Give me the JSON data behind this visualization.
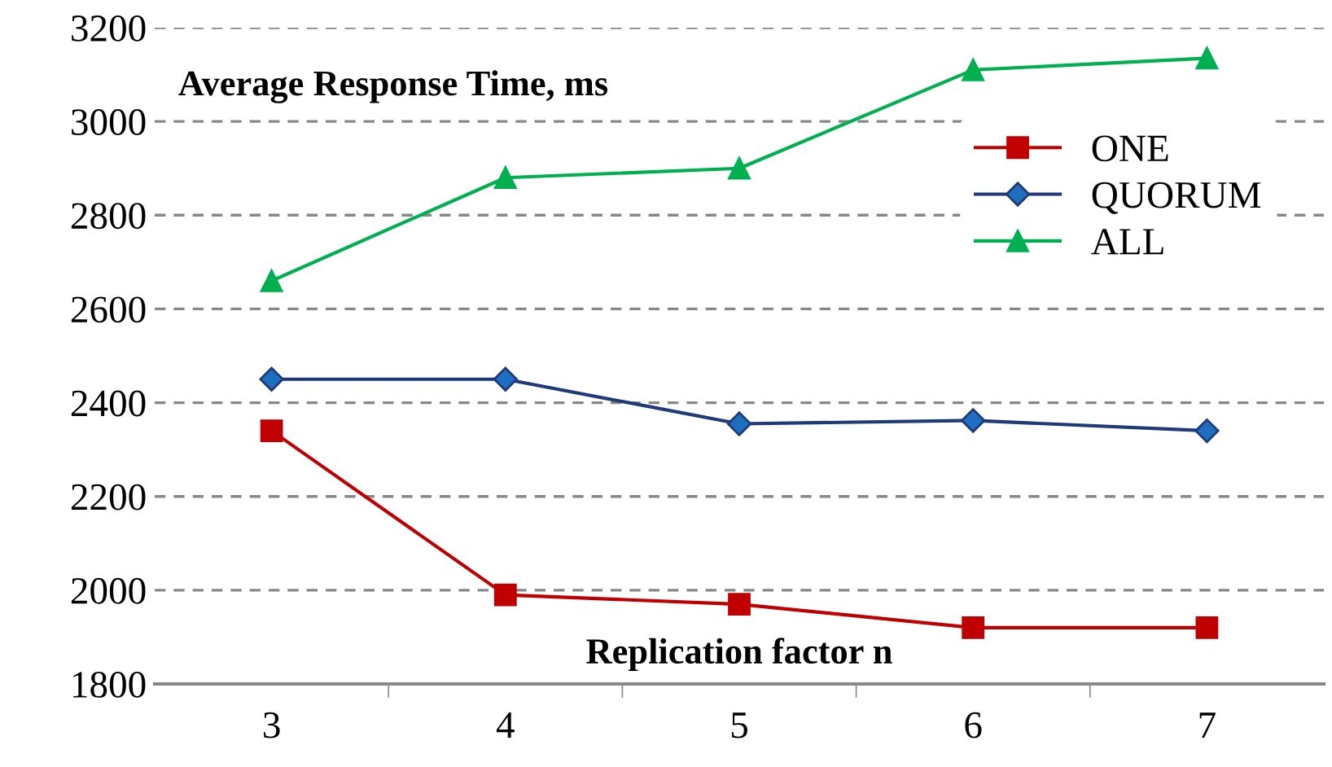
{
  "chart_data": {
    "type": "line",
    "title": "Average Response Time, ms",
    "xlabel": "Replication factor n",
    "categories": [
      "3",
      "4",
      "5",
      "6",
      "7"
    ],
    "series": [
      {
        "name": "ONE",
        "color": "#c00000",
        "marker": "square",
        "values": [
          2340,
          1990,
          1970,
          1920,
          1920
        ]
      },
      {
        "name": "QUORUM",
        "color": "#1f3a7a",
        "marker": "diamond",
        "values": [
          2450,
          2450,
          2355,
          2362,
          2340
        ]
      },
      {
        "name": "ALL",
        "color": "#00b050",
        "marker": "triangle",
        "values": [
          2660,
          2880,
          2900,
          3110,
          3135
        ]
      }
    ],
    "ylim": [
      1800,
      3200
    ],
    "yticks": [
      1800,
      2000,
      2200,
      2400,
      2600,
      2800,
      3000,
      3200
    ],
    "grid": "y",
    "legend": "right",
    "line_style": "solid"
  }
}
